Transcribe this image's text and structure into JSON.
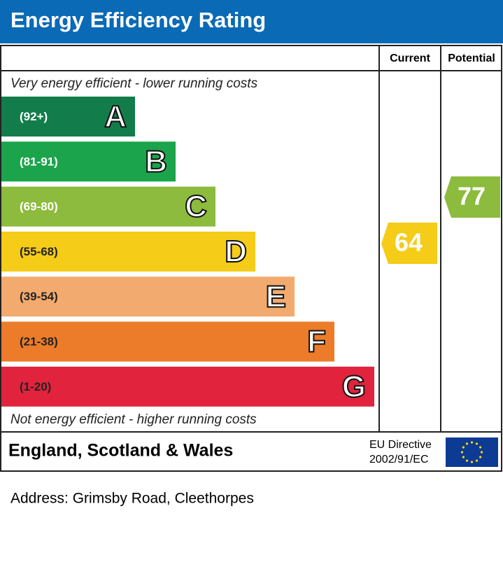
{
  "header": {
    "title": "Energy Efficiency Rating"
  },
  "columns": {
    "current": "Current",
    "potential": "Potential"
  },
  "top_note": "Very energy efficient - lower running costs",
  "bands": [
    {
      "range": "(92+)",
      "letter": "A"
    },
    {
      "range": "(81-91)",
      "letter": "B"
    },
    {
      "range": "(69-80)",
      "letter": "C"
    },
    {
      "range": "(55-68)",
      "letter": "D"
    },
    {
      "range": "(39-54)",
      "letter": "E"
    },
    {
      "range": "(21-38)",
      "letter": "F"
    },
    {
      "range": "(1-20)",
      "letter": "G"
    }
  ],
  "bottom_note": "Not energy efficient - higher running costs",
  "current": {
    "value": 64
  },
  "potential": {
    "value": 77
  },
  "footer": {
    "region": "England, Scotland & Wales",
    "directive": [
      "EU Directive",
      "2002/91/EC"
    ]
  },
  "address": "Address: Grimsby Road, Cleethorpes"
}
